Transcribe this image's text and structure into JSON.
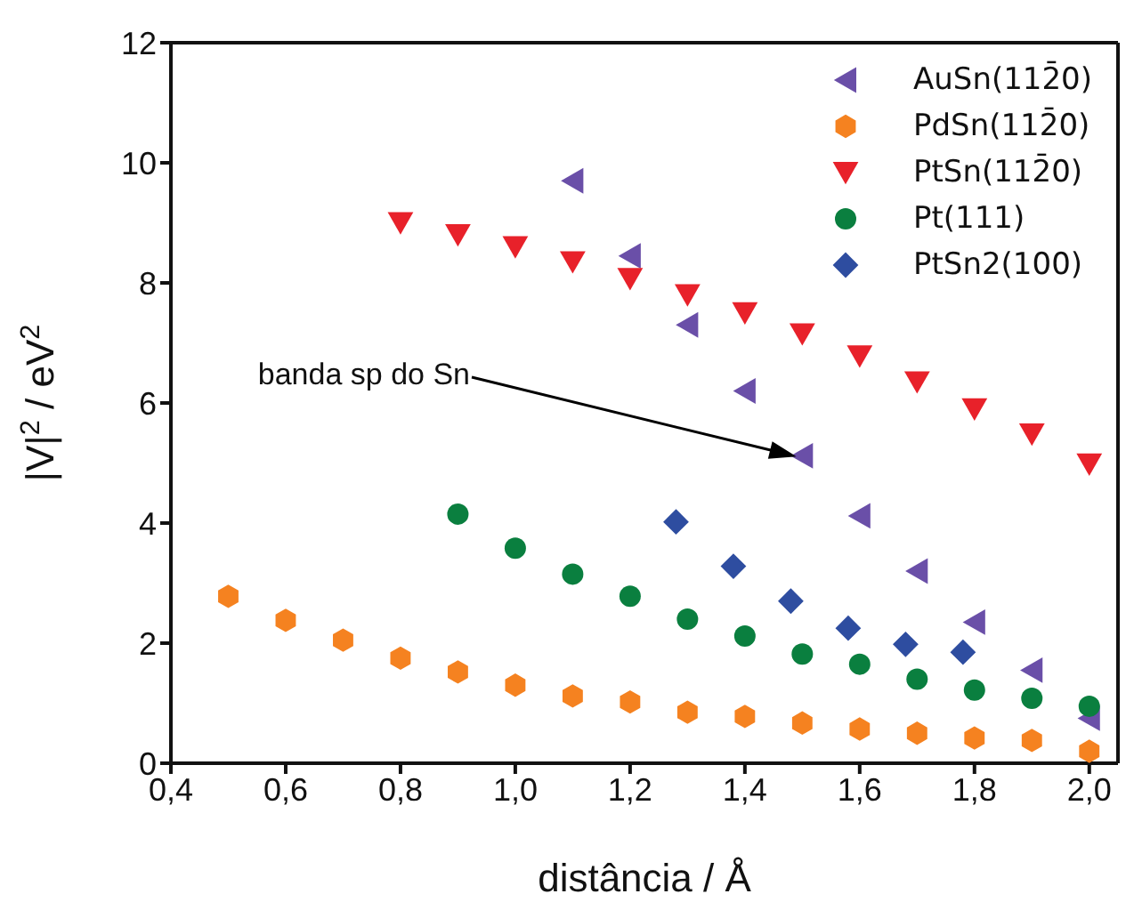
{
  "chart_data": {
    "type": "scatter",
    "xlabel": "distância / Å",
    "ylabel": "|V|$^{2}$ / eV$^{2}$",
    "xlim": [
      0.4,
      2.05
    ],
    "ylim": [
      0,
      12
    ],
    "xticks": [
      {
        "value": 0.4,
        "label": "0,4"
      },
      {
        "value": 0.6,
        "label": "0,6"
      },
      {
        "value": 0.8,
        "label": "0,8"
      },
      {
        "value": 1.0,
        "label": "1,0"
      },
      {
        "value": 1.2,
        "label": "1,2"
      },
      {
        "value": 1.4,
        "label": "1,4"
      },
      {
        "value": 1.6,
        "label": "1,6"
      },
      {
        "value": 1.8,
        "label": "1,8"
      },
      {
        "value": 2.0,
        "label": "2,0"
      }
    ],
    "yticks": [
      0,
      2,
      4,
      6,
      8,
      10,
      12
    ],
    "legend": "top right",
    "series": [
      {
        "name": "AuSn(112̄0)",
        "color": "#6a4fa8",
        "marker": "triangle",
        "x": [
          1.1,
          1.2,
          1.3,
          1.4,
          1.5,
          1.6,
          1.7,
          1.8,
          1.9,
          2.0
        ],
        "values": [
          9.7,
          8.45,
          7.3,
          6.2,
          5.12,
          4.12,
          3.2,
          2.35,
          1.55,
          0.75
        ]
      },
      {
        "name": "PdSn(112̄0)",
        "color": "#f58220",
        "x": [
          0.5,
          0.6,
          0.7,
          0.8,
          0.9,
          1.0,
          1.1,
          1.2,
          1.3,
          1.4,
          1.5,
          1.6,
          1.7,
          1.8,
          1.9,
          2.0
        ],
        "values": [
          2.78,
          2.38,
          2.05,
          1.75,
          1.52,
          1.3,
          1.12,
          1.02,
          0.85,
          0.78,
          0.67,
          0.57,
          0.5,
          0.42,
          0.38,
          0.2
        ]
      },
      {
        "name": "PtSn(112̄0)",
        "color": "#e8212a",
        "marker": "triangle",
        "x": [
          0.8,
          0.9,
          1.0,
          1.1,
          1.2,
          1.3,
          1.4,
          1.5,
          1.6,
          1.7,
          1.8,
          1.9,
          2.0
        ],
        "values": [
          9.0,
          8.8,
          8.6,
          8.35,
          8.07,
          7.8,
          7.5,
          7.15,
          6.78,
          6.35,
          5.9,
          5.48,
          4.98
        ]
      },
      {
        "name": "Pt(111)",
        "color": "#0a7f3f",
        "marker": "circle",
        "x": [
          0.9,
          1.0,
          1.1,
          1.2,
          1.3,
          1.4,
          1.5,
          1.6,
          1.7,
          1.8,
          1.9,
          2.0
        ],
        "values": [
          4.15,
          3.58,
          3.15,
          2.78,
          2.4,
          2.12,
          1.82,
          1.65,
          1.4,
          1.22,
          1.08,
          0.95
        ]
      },
      {
        "name": "PtSn2(100)",
        "color": "#2e4da0",
        "marker": "diamond",
        "x": [
          1.28,
          1.38,
          1.48,
          1.58,
          1.68,
          1.78
        ],
        "values": [
          4.02,
          3.28,
          2.7,
          2.25,
          1.98,
          1.85
        ]
      }
    ],
    "annotations": [
      "banda sp do Sn"
    ]
  }
}
